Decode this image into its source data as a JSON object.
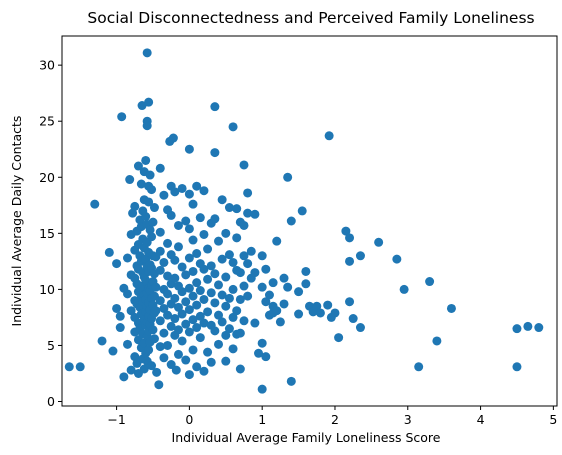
{
  "chart_data": {
    "type": "scatter",
    "title": "Social Disconnectedness and Perceived Family Loneliness",
    "xlabel": "Individual Average Family Loneliness Score",
    "ylabel": "Individual Average Daily Contacts",
    "xlim": [
      -1.75,
      5.05
    ],
    "ylim": [
      -0.4,
      32.6
    ],
    "xticks": [
      -1,
      0,
      1,
      2,
      3,
      4,
      5
    ],
    "yticks": [
      0,
      5,
      10,
      15,
      20,
      25,
      30
    ],
    "grid": false,
    "marker_color": "#1f77b4",
    "series": [
      {
        "points": [
          [
            -1.65,
            3.1
          ],
          [
            -1.5,
            3.1
          ],
          [
            -1.3,
            17.6
          ],
          [
            -1.2,
            5.4
          ],
          [
            -1.1,
            13.3
          ],
          [
            -1.05,
            4.5
          ],
          [
            -1.0,
            12.3
          ],
          [
            -1.0,
            8.3
          ],
          [
            -0.95,
            7.6
          ],
          [
            -0.95,
            6.6
          ],
          [
            -0.9,
            10.1
          ],
          [
            -0.9,
            2.2
          ],
          [
            -0.93,
            25.4
          ],
          [
            -0.85,
            12.8
          ],
          [
            -0.85,
            9.6
          ],
          [
            -0.85,
            5.1
          ],
          [
            -0.8,
            14.9
          ],
          [
            -0.8,
            11.3
          ],
          [
            -0.8,
            8.1
          ],
          [
            -0.8,
            2.8
          ],
          [
            -0.82,
            19.8
          ],
          [
            -0.78,
            16.8
          ],
          [
            -0.75,
            17.4
          ],
          [
            -0.75,
            13.5
          ],
          [
            -0.75,
            11.0
          ],
          [
            -0.75,
            9.0
          ],
          [
            -0.75,
            7.5
          ],
          [
            -0.75,
            6.2
          ],
          [
            -0.75,
            4.0
          ],
          [
            -0.72,
            15.2
          ],
          [
            -0.72,
            12.1
          ],
          [
            -0.72,
            10.5
          ],
          [
            -0.72,
            8.7
          ],
          [
            -0.72,
            3.4
          ],
          [
            -0.7,
            21.0
          ],
          [
            -0.7,
            14.0
          ],
          [
            -0.7,
            11.8
          ],
          [
            -0.7,
            9.8
          ],
          [
            -0.7,
            7.0
          ],
          [
            -0.7,
            5.5
          ],
          [
            -0.7,
            2.5
          ],
          [
            -0.68,
            16.2
          ],
          [
            -0.68,
            13.0
          ],
          [
            -0.68,
            10.0
          ],
          [
            -0.68,
            8.4
          ],
          [
            -0.68,
            6.5
          ],
          [
            -0.66,
            19.4
          ],
          [
            -0.66,
            15.6
          ],
          [
            -0.66,
            12.5
          ],
          [
            -0.66,
            9.3
          ],
          [
            -0.66,
            7.8
          ],
          [
            -0.66,
            4.8
          ],
          [
            -0.65,
            26.4
          ],
          [
            -0.64,
            17.0
          ],
          [
            -0.64,
            14.5
          ],
          [
            -0.64,
            11.5
          ],
          [
            -0.64,
            10.3
          ],
          [
            -0.64,
            8.9
          ],
          [
            -0.64,
            6.0
          ],
          [
            -0.64,
            3.8
          ],
          [
            -0.62,
            20.5
          ],
          [
            -0.62,
            18.0
          ],
          [
            -0.62,
            13.7
          ],
          [
            -0.62,
            11.1
          ],
          [
            -0.62,
            9.5
          ],
          [
            -0.62,
            7.3
          ],
          [
            -0.62,
            5.2
          ],
          [
            -0.62,
            2.9
          ],
          [
            -0.6,
            21.5
          ],
          [
            -0.6,
            16.5
          ],
          [
            -0.6,
            12.7
          ],
          [
            -0.6,
            10.8
          ],
          [
            -0.6,
            9.1
          ],
          [
            -0.6,
            8.0
          ],
          [
            -0.6,
            6.8
          ],
          [
            -0.6,
            4.3
          ],
          [
            -0.58,
            31.1
          ],
          [
            -0.58,
            25.0
          ],
          [
            -0.58,
            24.6
          ],
          [
            -0.58,
            15.8
          ],
          [
            -0.58,
            14.2
          ],
          [
            -0.58,
            12.0
          ],
          [
            -0.58,
            10.6
          ],
          [
            -0.58,
            9.7
          ],
          [
            -0.58,
            8.5
          ],
          [
            -0.58,
            7.1
          ],
          [
            -0.58,
            5.8
          ],
          [
            -0.58,
            3.6
          ],
          [
            -0.56,
            26.7
          ],
          [
            -0.56,
            19.2
          ],
          [
            -0.56,
            17.8
          ],
          [
            -0.56,
            13.3
          ],
          [
            -0.56,
            11.6
          ],
          [
            -0.56,
            10.1
          ],
          [
            -0.56,
            8.8
          ],
          [
            -0.56,
            7.6
          ],
          [
            -0.56,
            6.3
          ],
          [
            -0.56,
            4.6
          ],
          [
            -0.54,
            20.2
          ],
          [
            -0.54,
            15.3
          ],
          [
            -0.54,
            12.2
          ],
          [
            -0.54,
            9.9
          ],
          [
            -0.54,
            8.2
          ],
          [
            -0.54,
            6.9
          ],
          [
            -0.54,
            5.3
          ],
          [
            -0.52,
            18.9
          ],
          [
            -0.52,
            14.7
          ],
          [
            -0.52,
            11.9
          ],
          [
            -0.52,
            10.4
          ],
          [
            -0.52,
            9.2
          ],
          [
            -0.52,
            7.4
          ],
          [
            -0.52,
            3.2
          ],
          [
            -0.5,
            16.0
          ],
          [
            -0.5,
            13.0
          ],
          [
            -0.5,
            10.7
          ],
          [
            -0.5,
            8.6
          ],
          [
            -0.5,
            6.4
          ],
          [
            -0.48,
            17.3
          ],
          [
            -0.48,
            11.4
          ],
          [
            -0.48,
            9.4
          ],
          [
            -0.48,
            7.9
          ],
          [
            -0.48,
            5.6
          ],
          [
            -0.46,
            12.9
          ],
          [
            -0.46,
            10.2
          ],
          [
            -0.46,
            8.1
          ],
          [
            -0.45,
            2.6
          ],
          [
            -0.42,
            1.5
          ],
          [
            -0.4,
            20.8
          ],
          [
            -0.4,
            15.1
          ],
          [
            -0.4,
            13.4
          ],
          [
            -0.4,
            11.7
          ],
          [
            -0.4,
            9.0
          ],
          [
            -0.4,
            7.2
          ],
          [
            -0.4,
            4.9
          ],
          [
            -0.35,
            18.4
          ],
          [
            -0.35,
            12.4
          ],
          [
            -0.35,
            10.0
          ],
          [
            -0.35,
            8.3
          ],
          [
            -0.35,
            6.1
          ],
          [
            -0.35,
            3.9
          ],
          [
            -0.3,
            17.1
          ],
          [
            -0.3,
            14.1
          ],
          [
            -0.3,
            11.2
          ],
          [
            -0.3,
            9.6
          ],
          [
            -0.3,
            7.7
          ],
          [
            -0.3,
            5.0
          ],
          [
            -0.27,
            23.2
          ],
          [
            -0.25,
            19.2
          ],
          [
            -0.25,
            16.6
          ],
          [
            -0.25,
            13.1
          ],
          [
            -0.25,
            10.5
          ],
          [
            -0.25,
            8.7
          ],
          [
            -0.25,
            6.7
          ],
          [
            -0.25,
            3.3
          ],
          [
            -0.22,
            23.5
          ],
          [
            -0.2,
            18.7
          ],
          [
            -0.2,
            12.6
          ],
          [
            -0.2,
            11.0
          ],
          [
            -0.2,
            9.2
          ],
          [
            -0.2,
            7.4
          ],
          [
            -0.2,
            5.9
          ],
          [
            -0.18,
            2.8
          ],
          [
            -0.15,
            15.7
          ],
          [
            -0.15,
            13.8
          ],
          [
            -0.15,
            10.3
          ],
          [
            -0.15,
            8.4
          ],
          [
            -0.15,
            6.4
          ],
          [
            -0.15,
            4.2
          ],
          [
            -0.1,
            19.0
          ],
          [
            -0.1,
            12.0
          ],
          [
            -0.1,
            9.8
          ],
          [
            -0.1,
            7.8
          ],
          [
            -0.1,
            5.4
          ],
          [
            -0.05,
            16.1
          ],
          [
            -0.05,
            11.3
          ],
          [
            -0.05,
            8.9
          ],
          [
            -0.05,
            6.9
          ],
          [
            -0.05,
            3.7
          ],
          [
            0.0,
            22.5
          ],
          [
            0.0,
            18.5
          ],
          [
            0.0,
            15.4
          ],
          [
            0.0,
            12.8
          ],
          [
            0.0,
            10.1
          ],
          [
            0.0,
            8.2
          ],
          [
            0.0,
            6.2
          ],
          [
            0.0,
            2.4
          ],
          [
            0.05,
            17.6
          ],
          [
            0.05,
            14.4
          ],
          [
            0.05,
            11.6
          ],
          [
            0.05,
            9.4
          ],
          [
            0.05,
            7.3
          ],
          [
            0.05,
            4.6
          ],
          [
            0.1,
            19.2
          ],
          [
            0.1,
            13.2
          ],
          [
            0.1,
            10.6
          ],
          [
            0.1,
            8.6
          ],
          [
            0.1,
            6.6
          ],
          [
            0.1,
            3.1
          ],
          [
            0.15,
            16.4
          ],
          [
            0.15,
            12.3
          ],
          [
            0.15,
            9.9
          ],
          [
            0.15,
            7.6
          ],
          [
            0.15,
            5.7
          ],
          [
            0.2,
            18.8
          ],
          [
            0.2,
            14.9
          ],
          [
            0.2,
            11.8
          ],
          [
            0.2,
            9.1
          ],
          [
            0.2,
            7.0
          ],
          [
            0.2,
            2.7
          ],
          [
            0.25,
            13.6
          ],
          [
            0.25,
            10.9
          ],
          [
            0.25,
            8.0
          ],
          [
            0.25,
            4.4
          ],
          [
            0.3,
            15.9
          ],
          [
            0.3,
            12.1
          ],
          [
            0.3,
            9.7
          ],
          [
            0.3,
            6.8
          ],
          [
            0.3,
            3.5
          ],
          [
            0.35,
            26.3
          ],
          [
            0.35,
            22.2
          ],
          [
            0.35,
            16.3
          ],
          [
            0.35,
            11.4
          ],
          [
            0.35,
            8.8
          ],
          [
            0.35,
            6.3
          ],
          [
            0.4,
            14.3
          ],
          [
            0.4,
            10.4
          ],
          [
            0.4,
            7.7
          ],
          [
            0.4,
            5.1
          ],
          [
            0.45,
            18.0
          ],
          [
            0.45,
            12.7
          ],
          [
            0.45,
            9.5
          ],
          [
            0.45,
            7.1
          ],
          [
            0.5,
            15.0
          ],
          [
            0.5,
            11.1
          ],
          [
            0.5,
            8.5
          ],
          [
            0.5,
            5.9
          ],
          [
            0.5,
            3.6
          ],
          [
            0.55,
            17.3
          ],
          [
            0.55,
            13.1
          ],
          [
            0.55,
            9.2
          ],
          [
            0.55,
            6.5
          ],
          [
            0.6,
            24.5
          ],
          [
            0.6,
            12.4
          ],
          [
            0.6,
            10.0
          ],
          [
            0.6,
            7.5
          ],
          [
            0.6,
            4.7
          ],
          [
            0.65,
            17.2
          ],
          [
            0.65,
            14.6
          ],
          [
            0.65,
            11.7
          ],
          [
            0.65,
            8.1
          ],
          [
            0.65,
            6.0
          ],
          [
            0.7,
            16.0
          ],
          [
            0.7,
            11.5
          ],
          [
            0.7,
            9.1
          ],
          [
            0.7,
            6.1
          ],
          [
            0.7,
            2.9
          ],
          [
            0.75,
            21.1
          ],
          [
            0.75,
            15.7
          ],
          [
            0.75,
            13.0
          ],
          [
            0.75,
            10.3
          ],
          [
            0.75,
            7.2
          ],
          [
            0.8,
            18.6
          ],
          [
            0.8,
            16.8
          ],
          [
            0.8,
            12.3
          ],
          [
            0.8,
            9.4
          ],
          [
            0.85,
            13.4
          ],
          [
            0.85,
            11.0
          ],
          [
            0.9,
            16.7
          ],
          [
            0.9,
            11.5
          ],
          [
            0.9,
            7.0
          ],
          [
            0.95,
            4.3
          ],
          [
            1.0,
            1.1
          ],
          [
            1.0,
            13.0
          ],
          [
            1.0,
            10.2
          ],
          [
            1.0,
            5.2
          ],
          [
            1.05,
            11.8
          ],
          [
            1.05,
            8.9
          ],
          [
            1.05,
            4.0
          ],
          [
            1.1,
            9.5
          ],
          [
            1.1,
            7.7
          ],
          [
            1.15,
            10.6
          ],
          [
            1.15,
            7.9
          ],
          [
            1.15,
            8.5
          ],
          [
            1.2,
            14.3
          ],
          [
            1.2,
            8.1
          ],
          [
            1.25,
            7.1
          ],
          [
            1.3,
            11.0
          ],
          [
            1.3,
            8.7
          ],
          [
            1.35,
            20.0
          ],
          [
            1.35,
            10.2
          ],
          [
            1.4,
            16.1
          ],
          [
            1.4,
            1.8
          ],
          [
            1.5,
            9.8
          ],
          [
            1.5,
            7.8
          ],
          [
            1.55,
            17.0
          ],
          [
            1.6,
            11.6
          ],
          [
            1.6,
            10.5
          ],
          [
            1.65,
            8.5
          ],
          [
            1.7,
            8.0
          ],
          [
            1.75,
            8.5
          ],
          [
            1.8,
            7.9
          ],
          [
            1.9,
            8.6
          ],
          [
            1.92,
            23.7
          ],
          [
            1.95,
            7.5
          ],
          [
            2.0,
            7.9
          ],
          [
            2.05,
            5.7
          ],
          [
            2.15,
            15.2
          ],
          [
            2.2,
            14.6
          ],
          [
            2.2,
            12.5
          ],
          [
            2.2,
            8.9
          ],
          [
            2.25,
            7.4
          ],
          [
            2.35,
            13.0
          ],
          [
            2.35,
            6.6
          ],
          [
            2.6,
            14.2
          ],
          [
            2.85,
            12.7
          ],
          [
            2.95,
            10.0
          ],
          [
            3.15,
            3.1
          ],
          [
            3.3,
            10.7
          ],
          [
            3.4,
            5.4
          ],
          [
            3.6,
            8.3
          ],
          [
            4.5,
            6.5
          ],
          [
            4.5,
            3.1
          ],
          [
            4.65,
            6.7
          ],
          [
            4.8,
            6.6
          ]
        ]
      }
    ]
  }
}
